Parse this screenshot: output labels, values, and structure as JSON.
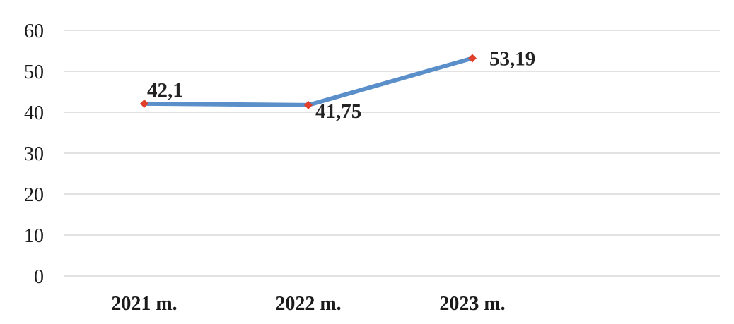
{
  "chart_data": {
    "type": "line",
    "title": "",
    "xlabel": "",
    "ylabel": "",
    "categories": [
      "2021 m.",
      "2022 m.",
      "2023 m."
    ],
    "series": [
      {
        "values": [
          42.1,
          41.75,
          53.19
        ],
        "labels": [
          "42,1",
          "41,75",
          "53,19"
        ]
      }
    ],
    "ylim": [
      0,
      60
    ],
    "yticks": [
      0,
      10,
      20,
      30,
      40,
      50,
      60
    ],
    "ytick_labels": [
      "0",
      "10",
      "20",
      "30",
      "40",
      "50",
      "60"
    ],
    "grid": true,
    "legend": "none",
    "colors": {
      "line": "#5b8fc9",
      "marker": "#e0402b",
      "grid": "#d9d9d9"
    }
  }
}
